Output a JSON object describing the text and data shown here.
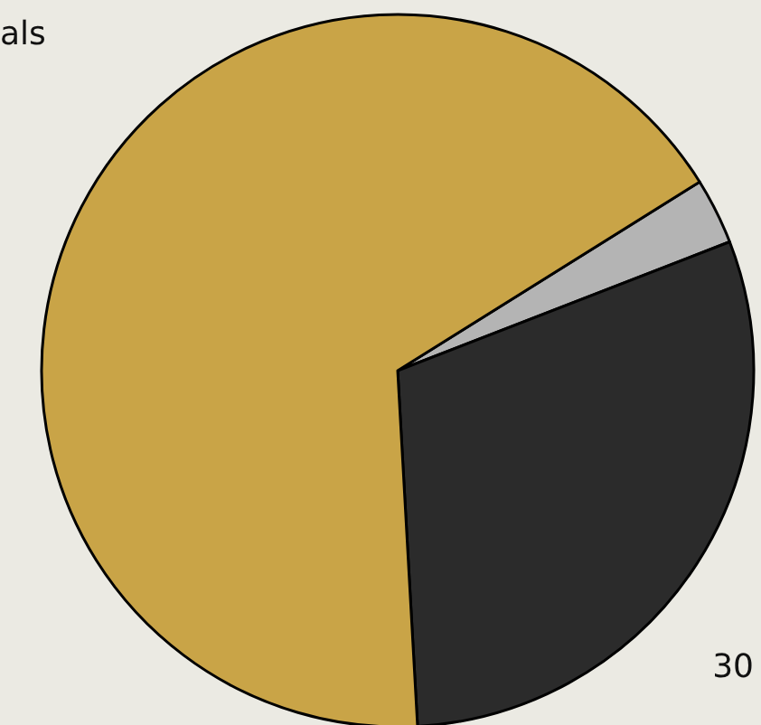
{
  "chart_data": {
    "type": "pie",
    "categories": [
      null,
      null,
      "als"
    ],
    "values": [
      3,
      30,
      67
    ],
    "colors": [
      "#b4b4b4",
      "#2b2b2b",
      "#c9a447"
    ],
    "value_labels": [
      null,
      "30",
      null
    ]
  }
}
